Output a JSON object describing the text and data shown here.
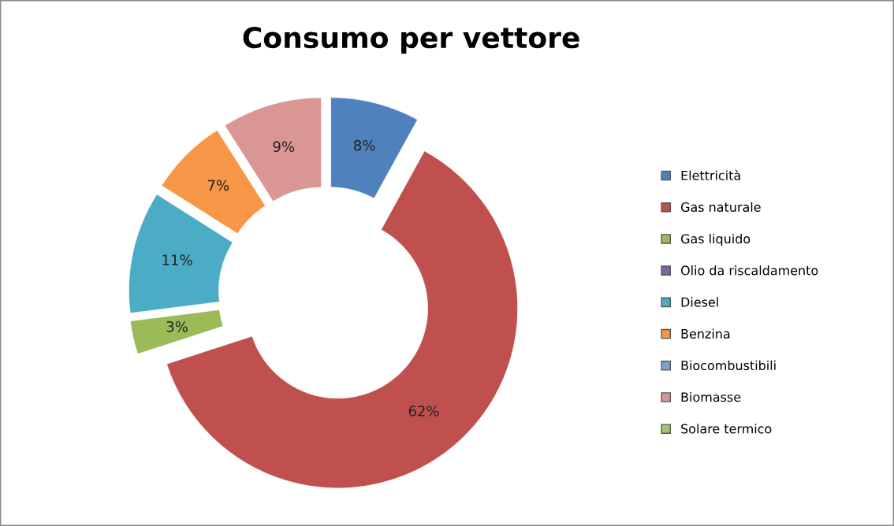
{
  "chart_data": {
    "type": "donut",
    "title": "Consumo per vettore",
    "categories": [
      "Elettricità",
      "Gas naturale",
      "Gas liquido",
      "Olio da riscaldamento",
      "Diesel",
      "Benzina",
      "Biocombustibili",
      "Biomasse",
      "Solare termico"
    ],
    "values": [
      8,
      62,
      3,
      0,
      11,
      7,
      0,
      9,
      0
    ],
    "value_labels": [
      "8%",
      "62%",
      "3%",
      null,
      "11%",
      "7%",
      null,
      "9%",
      null
    ],
    "colors": [
      "#4f81bd",
      "#c0504d",
      "#9bbb59",
      "#8064a2",
      "#4bacc6",
      "#f79646",
      "#7f9fcf",
      "#d99694",
      "#a5c46a"
    ],
    "legend": "right"
  }
}
